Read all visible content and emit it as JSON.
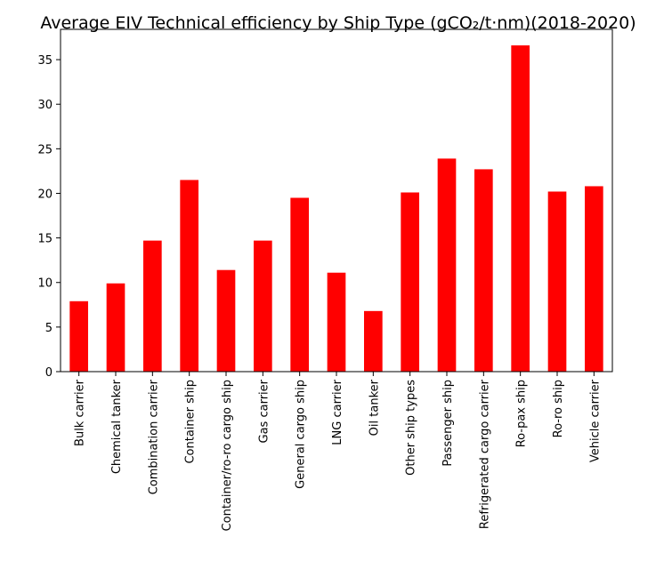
{
  "chart_data": {
    "type": "bar",
    "title": "Average EIV Technical efficiency by Ship Type (gCO₂/t·nm)(2018-2020)",
    "xlabel": "",
    "ylabel": "",
    "categories": [
      "Bulk carrier",
      "Chemical tanker",
      "Combination carrier",
      "Container ship",
      "Container/ro-ro cargo ship",
      "Gas carrier",
      "General cargo ship",
      "LNG carrier",
      "Oil tanker",
      "Other ship types",
      "Passenger ship",
      "Refrigerated cargo carrier",
      "Ro-pax ship",
      "Ro-ro ship",
      "Vehicle carrier"
    ],
    "values": [
      7.9,
      9.9,
      14.7,
      21.5,
      11.4,
      14.7,
      19.5,
      11.1,
      6.8,
      20.1,
      23.9,
      22.7,
      36.6,
      20.2,
      20.8
    ],
    "ylim": [
      0,
      38.4
    ],
    "yticks": [
      0,
      5,
      10,
      15,
      20,
      25,
      30,
      35
    ],
    "bar_color": "#ff0000",
    "grid": false,
    "legend": "none"
  }
}
